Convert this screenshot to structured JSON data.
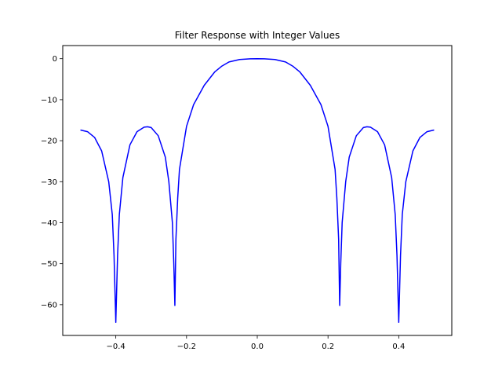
{
  "chart_data": {
    "type": "line",
    "title": "Filter Response with Integer Values",
    "xlabel": "",
    "ylabel": "",
    "xlim": [
      -0.55,
      0.55
    ],
    "ylim": [
      -67.5,
      3.2
    ],
    "xticks": [
      -0.4,
      -0.2,
      0.0,
      0.2,
      0.4
    ],
    "xtick_labels": [
      "−0.4",
      "−0.2",
      "0.0",
      "0.2",
      "0.4"
    ],
    "yticks": [
      0,
      -10,
      -20,
      -30,
      -40,
      -50,
      -60
    ],
    "ytick_labels": [
      "0",
      "−10",
      "−20",
      "−30",
      "−40",
      "−50",
      "−60"
    ],
    "grid": false,
    "series": [
      {
        "color": "#0000ff",
        "x": [
          -0.5,
          -0.48,
          -0.46,
          -0.44,
          -0.42,
          -0.41,
          -0.405,
          -0.4,
          -0.395,
          -0.39,
          -0.38,
          -0.36,
          -0.34,
          -0.32,
          -0.31,
          -0.3,
          -0.28,
          -0.26,
          -0.25,
          -0.24,
          -0.236,
          -0.233,
          -0.23,
          -0.225,
          -0.22,
          -0.2,
          -0.18,
          -0.15,
          -0.12,
          -0.1,
          -0.08,
          -0.05,
          -0.02,
          0.0,
          0.02,
          0.05,
          0.08,
          0.1,
          0.12,
          0.15,
          0.18,
          0.2,
          0.22,
          0.225,
          0.23,
          0.233,
          0.236,
          0.24,
          0.25,
          0.26,
          0.28,
          0.3,
          0.31,
          0.32,
          0.34,
          0.36,
          0.38,
          0.39,
          0.395,
          0.4,
          0.405,
          0.41,
          0.42,
          0.44,
          0.46,
          0.48,
          0.5
        ],
        "y": [
          -17.4,
          -17.8,
          -19.2,
          -22.5,
          -30.0,
          -38.0,
          -48.0,
          -64.3,
          -48.0,
          -38.0,
          -29.0,
          -21.0,
          -17.8,
          -16.7,
          -16.6,
          -16.8,
          -18.8,
          -24.0,
          -30.0,
          -40.0,
          -50.0,
          -60.2,
          -44.0,
          -34.0,
          -27.0,
          -16.5,
          -11.2,
          -6.5,
          -3.2,
          -1.8,
          -0.8,
          -0.2,
          -0.03,
          0.0,
          -0.03,
          -0.2,
          -0.8,
          -1.8,
          -3.2,
          -6.5,
          -11.2,
          -16.5,
          -27.0,
          -34.0,
          -44.0,
          -60.2,
          -50.0,
          -40.0,
          -30.0,
          -24.0,
          -18.8,
          -16.8,
          -16.6,
          -16.7,
          -17.8,
          -21.0,
          -29.0,
          -38.0,
          -48.0,
          -64.3,
          -48.0,
          -38.0,
          -30.0,
          -22.5,
          -19.2,
          -17.8,
          -17.4
        ]
      }
    ]
  }
}
